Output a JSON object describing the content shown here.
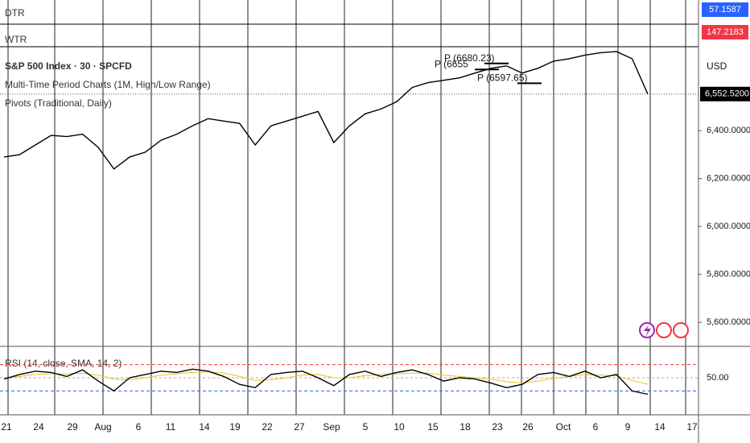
{
  "chart_data": {
    "type": "line",
    "title": "S&P 500 Index · 30 · SPCFD",
    "indicator_labels": [
      "Multi-Time Period Charts (1M, High/Low Range)",
      "Pivots (Traditional, Daily)"
    ],
    "currency": "USD",
    "dtr": {
      "name": "DTR",
      "value": 57.1587
    },
    "wtr": {
      "name": "WTR",
      "value": 147.2183
    },
    "last_price": {
      "value": 6552.52,
      "label": "6,552.5200"
    },
    "series": [
      {
        "name": "S&P 500 Index",
        "color": "#000000",
        "values": [
          6290,
          6300,
          6340,
          6380,
          6375,
          6385,
          6330,
          6240,
          6290,
          6310,
          6360,
          6385,
          6420,
          6450,
          6440,
          6430,
          6340,
          6420,
          6440,
          6460,
          6480,
          6350,
          6420,
          6470,
          6490,
          6520,
          6580,
          6600,
          6610,
          6620,
          6640,
          6660,
          6670,
          6640,
          6660,
          6690,
          6700,
          6715,
          6725,
          6730,
          6700,
          6552.52
        ]
      }
    ],
    "pivots": [
      {
        "label": "P (6680.23)",
        "value": 6680.23
      },
      {
        "label": "P (6655",
        "value": 6655
      },
      {
        "label": "P (6597.65)",
        "value": 6597.65
      }
    ],
    "ylim": [
      5500,
      6750
    ],
    "yticks": [
      {
        "value": 6400,
        "label": "6,400.0000"
      },
      {
        "value": 6200,
        "label": "6,200.0000"
      },
      {
        "value": 6000,
        "label": "6,000.0000"
      },
      {
        "value": 5800,
        "label": "5,800.0000"
      },
      {
        "value": 5600,
        "label": "5,600.0000"
      }
    ],
    "xtick_labels": [
      "21",
      "24",
      "29",
      "Aug",
      "6",
      "11",
      "14",
      "19",
      "22",
      "27",
      "Sep",
      "5",
      "10",
      "15",
      "18",
      "23",
      "26",
      "Oct",
      "6",
      "9",
      "14",
      "17"
    ],
    "rsi": {
      "title": "RSI (14, close, SMA, 14, 2)",
      "color": "#000000",
      "ma_color": "#e6c619",
      "values": [
        48,
        55,
        60,
        58,
        52,
        62,
        45,
        30,
        50,
        55,
        60,
        58,
        63,
        60,
        52,
        40,
        35,
        55,
        58,
        60,
        50,
        38,
        55,
        60,
        52,
        58,
        62,
        55,
        45,
        50,
        48,
        42,
        35,
        40,
        55,
        58,
        52,
        60,
        50,
        55,
        30,
        25
      ],
      "ma": [
        50,
        52,
        55,
        56,
        56,
        57,
        54,
        48,
        47,
        50,
        54,
        56,
        58,
        59,
        57,
        52,
        46,
        47,
        50,
        54,
        55,
        50,
        50,
        53,
        55,
        56,
        57,
        57,
        54,
        52,
        50,
        48,
        44,
        42,
        45,
        49,
        52,
        55,
        54,
        53,
        46,
        40
      ],
      "upper_band": 70,
      "lower_band": 30,
      "ylim": [
        0,
        100
      ],
      "yticks": [
        {
          "value": 50,
          "label": "50.00"
        }
      ]
    }
  }
}
